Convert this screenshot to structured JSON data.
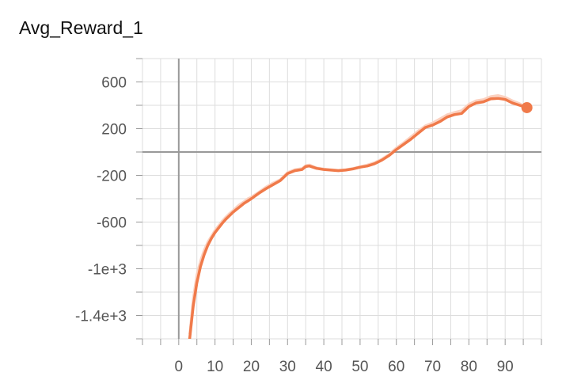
{
  "chart_data": {
    "type": "line",
    "title": "Avg_Reward_1",
    "xlabel": "",
    "ylabel": "",
    "xlim": [
      -10,
      100
    ],
    "ylim": [
      -1600,
      800
    ],
    "x_ticks": [
      0,
      10,
      20,
      30,
      40,
      50,
      60,
      70,
      80,
      90
    ],
    "y_ticks": [
      {
        "value": 600,
        "label": "600"
      },
      {
        "value": 200,
        "label": "200"
      },
      {
        "value": -200,
        "label": "-200"
      },
      {
        "value": -600,
        "label": "-600"
      },
      {
        "value": -1000,
        "label": "-1e+3"
      },
      {
        "value": -1400,
        "label": "-1.4e+3"
      }
    ],
    "grid": true,
    "series": [
      {
        "color": "#f07a4a",
        "raw_color": "#fbd1c0",
        "x": [
          3,
          4,
          5,
          6,
          7,
          8,
          9,
          10,
          11,
          12,
          13,
          14,
          15,
          16,
          17,
          18,
          19,
          20,
          22,
          24,
          26,
          28,
          30,
          32,
          34,
          35,
          36,
          38,
          40,
          42,
          44,
          46,
          48,
          50,
          52,
          54,
          56,
          58,
          60,
          62,
          64,
          66,
          68,
          70,
          72,
          74,
          76,
          78,
          80,
          82,
          84,
          86,
          88,
          90,
          92,
          94,
          96
        ],
        "values": [
          -1600,
          -1320,
          -1120,
          -980,
          -880,
          -800,
          -740,
          -690,
          -650,
          -610,
          -575,
          -545,
          -515,
          -490,
          -465,
          -440,
          -420,
          -400,
          -355,
          -315,
          -280,
          -245,
          -185,
          -160,
          -150,
          -125,
          -120,
          -140,
          -150,
          -155,
          -160,
          -155,
          -145,
          -130,
          -120,
          -100,
          -70,
          -30,
          20,
          65,
          110,
          160,
          210,
          230,
          260,
          300,
          320,
          330,
          390,
          420,
          430,
          455,
          460,
          450,
          420,
          400,
          380
        ],
        "raw_values": [
          -1560,
          -1250,
          -1050,
          -930,
          -840,
          -770,
          -720,
          -670,
          -630,
          -590,
          -555,
          -525,
          -500,
          -470,
          -445,
          -425,
          -400,
          -385,
          -345,
          -300,
          -265,
          -235,
          -175,
          -150,
          -140,
          -115,
          -110,
          -135,
          -145,
          -150,
          -155,
          -150,
          -140,
          -125,
          -110,
          -90,
          -60,
          -20,
          35,
          80,
          130,
          180,
          225,
          250,
          285,
          320,
          340,
          355,
          410,
          440,
          450,
          475,
          485,
          470,
          440,
          415,
          380
        ]
      }
    ]
  }
}
